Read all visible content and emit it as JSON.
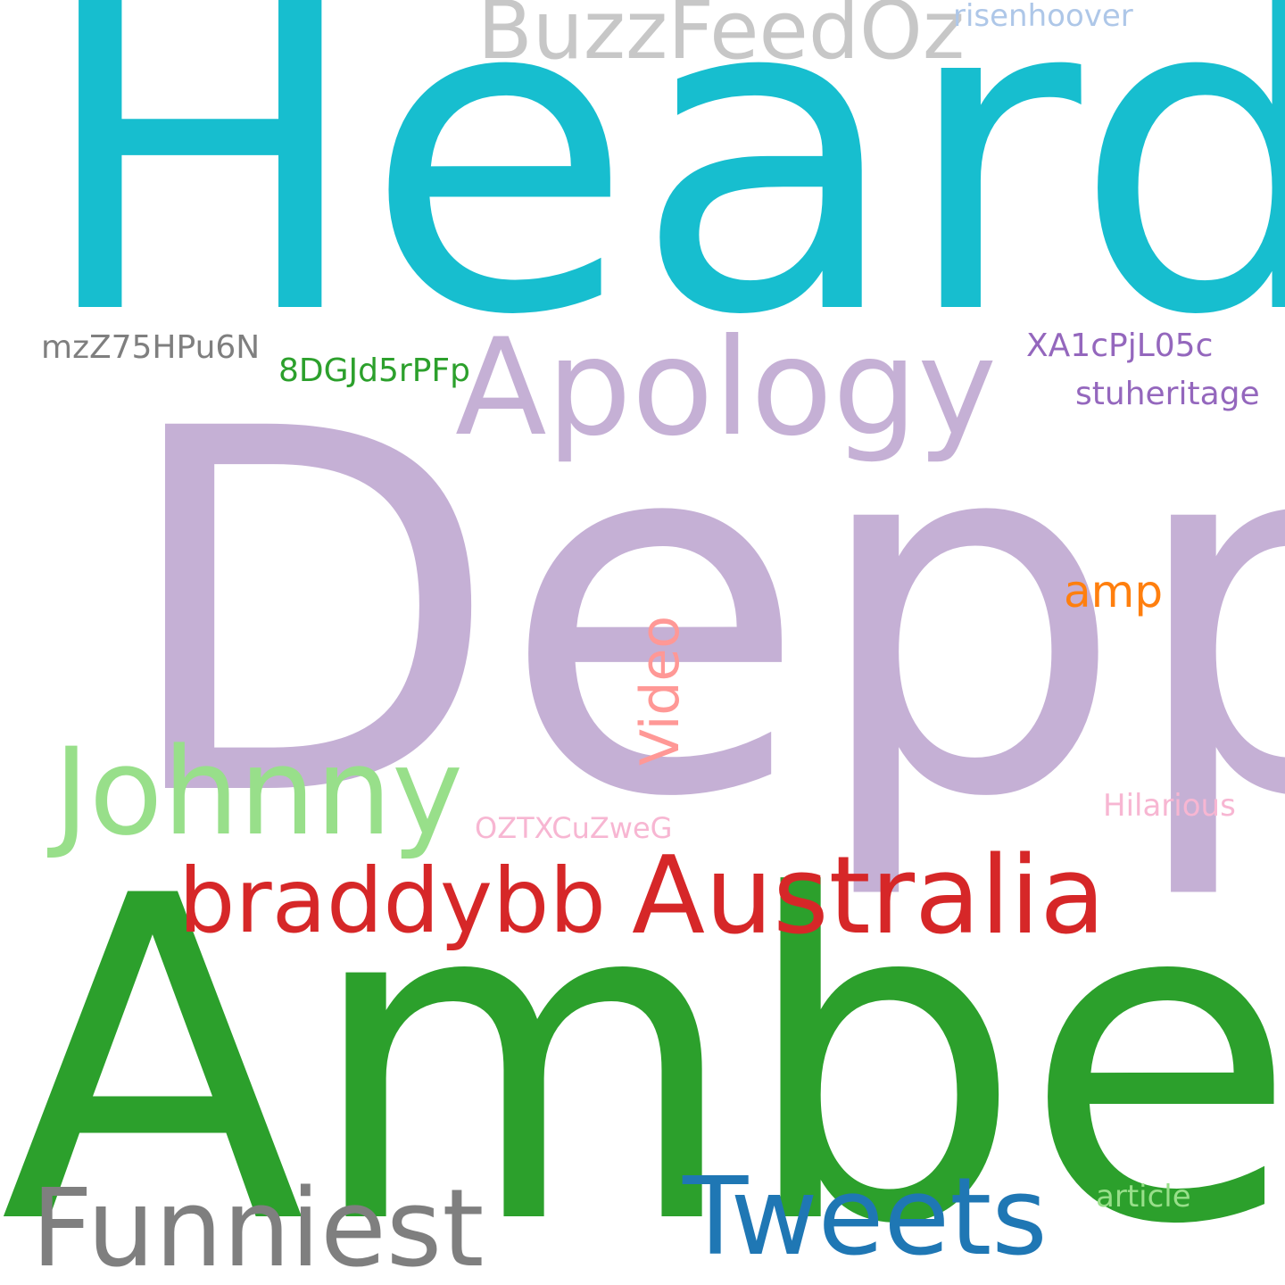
{
  "words": {
    "heard": {
      "text": "Heard",
      "color": "#17becf"
    },
    "depp": {
      "text": "Depp",
      "color": "#c5b0d5"
    },
    "amber": {
      "text": "Amber",
      "color": "#2ca02c"
    },
    "apology": {
      "text": "Apology",
      "color": "#c5b0d5"
    },
    "johnny": {
      "text": "Johnny",
      "color": "#98df8a"
    },
    "australia": {
      "text": "Australia",
      "color": "#d62728"
    },
    "braddybb": {
      "text": "braddybb",
      "color": "#d62728"
    },
    "funniest": {
      "text": "Funniest",
      "color": "#7f7f7f"
    },
    "tweets": {
      "text": "Tweets",
      "color": "#1f77b4"
    },
    "buzzfeedoz": {
      "text": "BuzzFeedOz",
      "color": "#c7c7c7"
    },
    "risenhoover": {
      "text": "risenhoover",
      "color": "#aec7e8"
    },
    "mzz": {
      "text": "mzZ75HPu6N",
      "color": "#7f7f7f"
    },
    "dgj": {
      "text": "8DGJd5rPFp",
      "color": "#2ca02c"
    },
    "xa1": {
      "text": "XA1cPjL05c",
      "color": "#9467bd"
    },
    "stuheritage": {
      "text": "stuheritage",
      "color": "#9467bd"
    },
    "amp": {
      "text": "amp",
      "color": "#ff7f0e"
    },
    "video": {
      "text": "Video",
      "color": "#ff9896"
    },
    "oztx": {
      "text": "OZTXCuZweG",
      "color": "#f7b6d2"
    },
    "hilarious": {
      "text": "Hilarious",
      "color": "#f7b6d2"
    },
    "article": {
      "text": "article",
      "color": "#98df8a"
    }
  }
}
